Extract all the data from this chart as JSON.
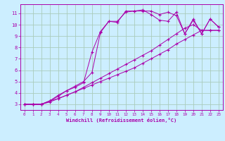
{
  "xlabel": "Windchill (Refroidissement éolien,°C)",
  "bg_color": "#cceeff",
  "grid_color": "#aaccbb",
  "line_color": "#aa00aa",
  "xlim": [
    -0.5,
    23.5
  ],
  "ylim": [
    2.5,
    11.8
  ],
  "xticks": [
    0,
    1,
    2,
    3,
    4,
    5,
    6,
    7,
    8,
    9,
    10,
    11,
    12,
    13,
    14,
    15,
    16,
    17,
    18,
    19,
    20,
    21,
    22,
    23
  ],
  "yticks": [
    3,
    4,
    5,
    6,
    7,
    8,
    9,
    10,
    11
  ],
  "series": [
    {
      "x": [
        0,
        1,
        2,
        3,
        4,
        5,
        6,
        7,
        8,
        9,
        10,
        11,
        12,
        13,
        14,
        15,
        16,
        17,
        18,
        19,
        20,
        21,
        22,
        23
      ],
      "y": [
        3.0,
        3.0,
        3.0,
        3.3,
        3.5,
        3.8,
        4.1,
        4.4,
        4.7,
        5.0,
        5.3,
        5.6,
        5.9,
        6.2,
        6.6,
        7.0,
        7.4,
        7.8,
        8.3,
        8.7,
        9.1,
        9.5,
        9.5,
        9.5
      ]
    },
    {
      "x": [
        0,
        1,
        2,
        3,
        4,
        5,
        6,
        7,
        8,
        9,
        10,
        11,
        12,
        13,
        14,
        15,
        16,
        17,
        18,
        19,
        20,
        21,
        22,
        23
      ],
      "y": [
        3.0,
        3.0,
        3.0,
        3.2,
        3.5,
        3.8,
        4.1,
        4.5,
        4.9,
        5.3,
        5.7,
        6.1,
        6.5,
        6.9,
        7.3,
        7.7,
        8.2,
        8.7,
        9.2,
        9.7,
        10.0,
        9.5,
        9.5,
        9.5
      ]
    },
    {
      "x": [
        0,
        1,
        2,
        3,
        4,
        5,
        6,
        7,
        8,
        9,
        10,
        11,
        12,
        13,
        14,
        15,
        16,
        17,
        18,
        19,
        20,
        21,
        22,
        23
      ],
      "y": [
        3.0,
        3.0,
        3.0,
        3.3,
        3.7,
        4.2,
        4.6,
        5.0,
        5.8,
        9.3,
        10.3,
        10.3,
        11.1,
        11.2,
        11.3,
        10.9,
        10.4,
        10.3,
        11.1,
        9.2,
        10.4,
        9.2,
        10.5,
        9.8
      ]
    },
    {
      "x": [
        0,
        1,
        2,
        3,
        4,
        5,
        6,
        7,
        8,
        9,
        10,
        11,
        12,
        13,
        14,
        15,
        16,
        17,
        18,
        19,
        20,
        21,
        22,
        23
      ],
      "y": [
        3.0,
        3.0,
        3.0,
        3.3,
        3.8,
        4.2,
        4.5,
        4.9,
        7.6,
        9.4,
        10.3,
        10.2,
        11.2,
        11.2,
        11.2,
        11.2,
        10.9,
        11.1,
        10.8,
        9.2,
        10.5,
        9.2,
        10.5,
        9.8
      ]
    }
  ]
}
